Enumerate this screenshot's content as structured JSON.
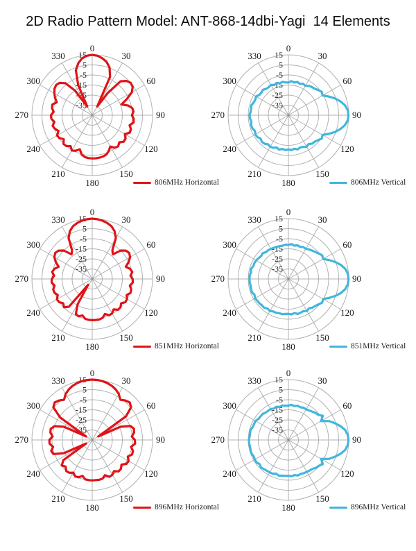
{
  "title": "2D Radio Pattern Model: ANT-868-14dbi-Yagi  14 Elements",
  "colors": {
    "horizontal": "#e01317",
    "vertical": "#41b6dd",
    "grid": "#b0b0b0",
    "text": "#191919"
  },
  "polar_axes": {
    "angle_labels_deg": [
      0,
      30,
      60,
      90,
      120,
      150,
      180,
      210,
      240,
      270,
      300,
      330
    ],
    "radial_tick_values": [
      15,
      5,
      -5,
      -15,
      -25,
      -35
    ],
    "radial_min": -45,
    "radial_max": 15,
    "angle_step_deg": 5,
    "unit": "dBi"
  },
  "chart_data": [
    {
      "type": "polar-line",
      "legend": "806MHz Horizontal",
      "frequency": "806MHz",
      "polarization": "horizontal",
      "angle_step_deg": 5,
      "values": [
        15,
        14.3,
        12.5,
        10,
        5.5,
        -3,
        -35,
        -18,
        -1,
        3.2,
        5,
        4.2,
        0.5,
        -7,
        -14,
        -8,
        -4.5,
        -3.8,
        -5.5,
        -3.6,
        -3.2,
        -6.5,
        -4,
        -3.8,
        -7.5,
        -4.5,
        -4,
        -7,
        -4.8,
        -5.5,
        -9,
        -6,
        -3.5,
        -2.6,
        -2.2,
        -2,
        -2,
        -2.2,
        -2.8,
        -4.5,
        -9,
        -6,
        -4.5,
        -7.5,
        -5,
        -4.6,
        -8,
        -5.2,
        -4.6,
        -8,
        -5.5,
        -4.2,
        -6.8,
        -4.2,
        -4,
        -6.5,
        -4.4,
        -4,
        -7.5,
        -4.2,
        -1.5,
        0.8,
        1.8,
        0.5,
        -3.5,
        -15,
        -35,
        -12,
        2.5,
        8.5,
        12.5,
        14.3
      ]
    },
    {
      "type": "polar-line",
      "legend": "806MHz Vertical",
      "frequency": "806MHz",
      "polarization": "vertical",
      "angle_step_deg": 5,
      "values": [
        -12.5,
        -11,
        -12,
        -10.8,
        -11.8,
        -10.5,
        -11.2,
        -9.5,
        -8.5,
        -7.8,
        -6.2,
        -4.5,
        -5.8,
        -1,
        4,
        8.5,
        12,
        14.2,
        14.8,
        14.2,
        12,
        8.5,
        4,
        -1,
        -5.8,
        -4.5,
        -6.5,
        -7.8,
        -8.2,
        -10,
        -8.8,
        -10.3,
        -10.8,
        -9.8,
        -11.2,
        -10.2,
        -11,
        -10.2,
        -11,
        -9.6,
        -10.8,
        -9.2,
        -8.8,
        -9.6,
        -8,
        -7.6,
        -8.8,
        -7.2,
        -7,
        -8.2,
        -6.8,
        -6.6,
        -7.6,
        -6.7,
        -6.3,
        -7.2,
        -7.4,
        -6.8,
        -8.2,
        -8.6,
        -7.8,
        -9.8,
        -9.9,
        -9.2,
        -10.8,
        -10.9,
        -10.2,
        -11.8,
        -10.9,
        -12.2,
        -11.3,
        -12.3
      ]
    },
    {
      "type": "polar-line",
      "legend": "851MHz Horizontal",
      "frequency": "851MHz",
      "polarization": "horizontal",
      "angle_step_deg": 5,
      "values": [
        15,
        14.6,
        13.8,
        12.6,
        10.8,
        7.5,
        2,
        -10,
        -13,
        -5,
        -1.2,
        0,
        -1.5,
        -5,
        -9.5,
        -6,
        -4.5,
        -6.8,
        -4.8,
        -4.5,
        -7,
        -4.8,
        -4.5,
        -7.2,
        -5,
        -4.8,
        -7.5,
        -5.2,
        -5,
        -8,
        -5.5,
        -5.2,
        -8,
        -5,
        -4.2,
        -4,
        -4,
        -4.2,
        -4.8,
        -7.5,
        -5.5,
        -6.5,
        -16,
        -38,
        -9,
        -5.2,
        -7.5,
        -4.8,
        -4.5,
        -7.2,
        -5,
        -4.8,
        -7,
        -4.5,
        -4.8,
        -7,
        -4.5,
        -6,
        -9.5,
        -5,
        -1.5,
        0,
        -1.2,
        -5,
        -13,
        -10,
        2,
        7.5,
        10.8,
        12.6,
        13.8,
        14.6
      ]
    },
    {
      "type": "polar-line",
      "legend": "851MHz Vertical",
      "frequency": "851MHz",
      "polarization": "vertical",
      "angle_step_deg": 5,
      "values": [
        -11.2,
        -10.2,
        -11.4,
        -10.4,
        -11,
        -10,
        -10.4,
        -9.2,
        -8.2,
        -7.2,
        -5.6,
        -4,
        -5.2,
        -0.5,
        4.5,
        9,
        12.5,
        14.3,
        14.8,
        14.3,
        12.5,
        9,
        4.5,
        -0.5,
        -5.2,
        -4,
        -5.8,
        -7.2,
        -7.8,
        -9.4,
        -8.2,
        -9.8,
        -9.4,
        -9,
        -10.6,
        -9.6,
        -10.4,
        -10.2,
        -9.4,
        -9.8,
        -9.2,
        -9.4,
        -8.2,
        -9,
        -7.6,
        -7.8,
        -7.4,
        -7.2,
        -6.6,
        -7.8,
        -6.4,
        -6.6,
        -6.8,
        -6.3,
        -6.4,
        -6.2,
        -7.2,
        -6.4,
        -7.8,
        -7.6,
        -8,
        -8.8,
        -9.6,
        -8.8,
        -10.2,
        -10,
        -10.4,
        -10.8,
        -11,
        -11.2,
        -11.4,
        -10.8
      ]
    },
    {
      "type": "polar-line",
      "legend": "896MHz Horizontal",
      "frequency": "896MHz",
      "polarization": "horizontal",
      "angle_step_deg": 5,
      "values": [
        15,
        14.8,
        14.3,
        13.5,
        12.2,
        10.4,
        7.8,
        3.8,
        6.2,
        7.8,
        5.5,
        -4,
        -38,
        -14,
        -4.5,
        -2,
        -2.8,
        -5.5,
        -2.6,
        -2.2,
        -5.8,
        -3,
        -2.8,
        -6,
        -3.2,
        -3.5,
        -7,
        -4.5,
        -4.2,
        -7.2,
        -5,
        -4.6,
        -7.8,
        -5.2,
        -4.8,
        -5,
        -4.8,
        -5,
        -5.2,
        -8,
        -5.5,
        -5,
        -7.5,
        -5.2,
        -4.8,
        -7.5,
        -5.5,
        -10,
        -38,
        -14,
        -4,
        -2.8,
        -5.5,
        -2.4,
        -2.4,
        -5.5,
        -2.8,
        -2.2,
        -5,
        -14,
        -38,
        -6,
        5.5,
        7.8,
        6.2,
        3.8,
        7.8,
        10.4,
        12.2,
        13.5,
        14.3,
        14.8
      ]
    },
    {
      "type": "polar-line",
      "legend": "896MHz Vertical",
      "frequency": "896MHz",
      "polarization": "vertical",
      "angle_step_deg": 5,
      "values": [
        -10.8,
        -10,
        -10.8,
        -9.8,
        -10.4,
        -9.6,
        -9.8,
        -9.2,
        -8.2,
        -7,
        -6.2,
        -3.2,
        -7.5,
        -0.5,
        4,
        8.5,
        12.3,
        14.2,
        14.8,
        14.2,
        12.3,
        8.5,
        4,
        -0.5,
        -7.5,
        -3.2,
        -5.2,
        -6,
        -7.6,
        -8,
        -8.4,
        -8.6,
        -9.2,
        -8.4,
        -9.6,
        -8.8,
        -9.4,
        -9.2,
        -9,
        -8.2,
        -9.4,
        -8,
        -7.8,
        -7.6,
        -7.2,
        -6.4,
        -7.6,
        -6.2,
        -6.4,
        -6.8,
        -5.8,
        -6,
        -6.2,
        -5.8,
        -5.6,
        -6.2,
        -6.3,
        -6,
        -7.2,
        -7.3,
        -7.2,
        -8.6,
        -8.7,
        -8.5,
        -9.6,
        -9.7,
        -9.5,
        -10.6,
        -9.9,
        -11,
        -10.2,
        -10.8
      ]
    }
  ]
}
